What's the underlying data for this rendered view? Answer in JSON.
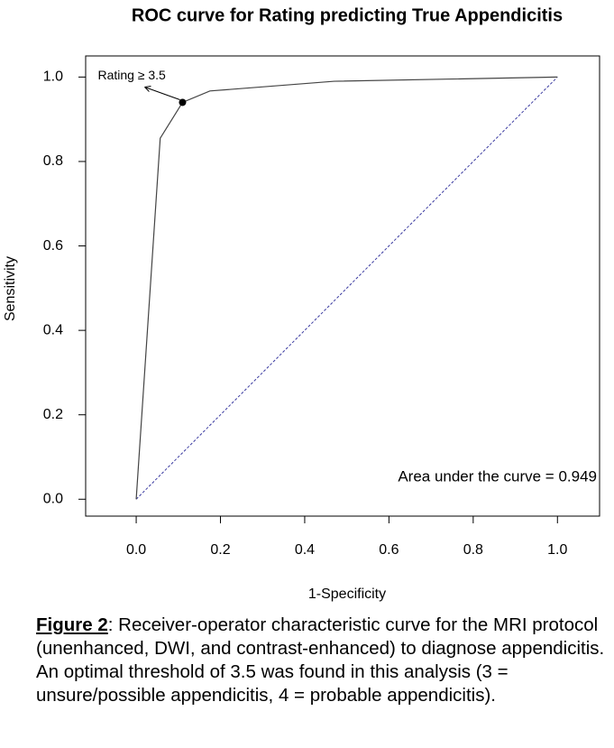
{
  "chart_data": {
    "type": "line",
    "title": "ROC curve for Rating predicting True Appendicitis",
    "x_label": "1-Specificity",
    "y_label": "Sensitivity",
    "xlim": [
      -0.12,
      1.1
    ],
    "ylim": [
      -0.04,
      1.05
    ],
    "xticks": [
      {
        "value": 0,
        "label": "0.0"
      },
      0.2,
      0.4,
      0.6,
      0.8,
      {
        "value": 1,
        "label": "1.0"
      }
    ],
    "yticks": [
      {
        "value": 0,
        "label": "0.0"
      },
      0.2,
      0.4,
      0.6,
      0.8,
      {
        "value": 1,
        "label": "1.0"
      }
    ],
    "x": [
      0,
      0.057,
      0.11,
      0.175,
      0.47,
      1
    ],
    "series": [
      {
        "color": "#444444",
        "values": [
          0,
          0.855,
          0.94,
          0.967,
          0.99,
          1
        ]
      }
    ],
    "reference_line": {
      "x": [
        0,
        1
      ],
      "y": [
        0,
        1
      ],
      "color": "#3a3aa0",
      "dashed": true
    },
    "threshold_point": {
      "label": "Rating ≥ 3.5",
      "x": 0.11,
      "y": 0.94
    },
    "auc_text": "Area under the curve = 0.949"
  },
  "caption": {
    "label": "Figure 2",
    "text": ": Receiver-operator  characteristic curve for the MRI protocol (unenhanced, DWI, and contrast-enhanced) to diagnose appendicitis. An optimal threshold of 3.5 was found in this analysis (3 = unsure/possible appendicitis, 4 = probable appendicitis)."
  }
}
